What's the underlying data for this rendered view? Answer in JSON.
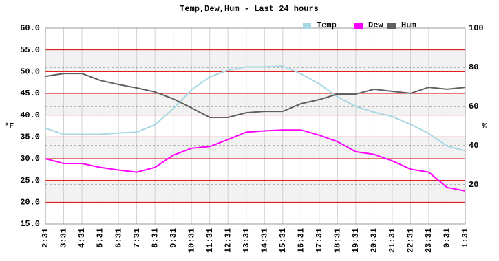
{
  "chart_data": {
    "type": "line",
    "title": "Temp,Dew,Hum - Last 24 hours",
    "ylabel": "°F",
    "y2label": "%",
    "categories": [
      "2:31",
      "3:31",
      "4:31",
      "5:31",
      "6:31",
      "7:31",
      "8:31",
      "9:31",
      "10:31",
      "11:31",
      "12:31",
      "13:31",
      "14:31",
      "15:31",
      "16:31",
      "17:31",
      "18:31",
      "19:31",
      "20:31",
      "21:31",
      "22:31",
      "23:31",
      "0:31",
      "1:31"
    ],
    "series": [
      {
        "name": "Temp",
        "color": "#a8d8e4",
        "values": [
          37.0,
          35.6,
          35.6,
          35.6,
          35.9,
          36.1,
          37.8,
          41.5,
          45.8,
          48.8,
          50.3,
          51.1,
          51.1,
          51.3,
          49.5,
          47.2,
          44.2,
          42.0,
          40.7,
          39.7,
          37.9,
          35.8,
          32.9,
          31.8
        ]
      },
      {
        "name": "Dew",
        "color": "#ff00ff",
        "values": [
          30.0,
          28.9,
          28.9,
          28.0,
          27.4,
          26.9,
          28.0,
          30.8,
          32.4,
          32.8,
          34.4,
          36.1,
          36.4,
          36.6,
          36.6,
          35.4,
          33.9,
          31.6,
          31.0,
          29.5,
          27.6,
          26.9,
          23.4,
          22.6
        ]
      },
      {
        "name": "Hum",
        "color": "#606060",
        "axis": "y2",
        "values": [
          75.4,
          76.8,
          76.8,
          73.3,
          71.2,
          69.5,
          67.4,
          63.9,
          59.3,
          54.4,
          54.4,
          56.8,
          57.5,
          57.5,
          61.4,
          63.5,
          66.3,
          66.3,
          68.8,
          67.7,
          66.7,
          69.8,
          68.8,
          69.8
        ]
      }
    ],
    "ylim": [
      15,
      60
    ],
    "yticks": [
      {
        "value": 15,
        "label": "15.0"
      },
      {
        "value": 20,
        "label": "20.0"
      },
      {
        "value": 25,
        "label": "25.0"
      },
      {
        "value": 30,
        "label": "30.0"
      },
      {
        "value": 35,
        "label": "35.0"
      },
      {
        "value": 40,
        "label": "40.0"
      },
      {
        "value": 45,
        "label": "45.0"
      },
      {
        "value": 50,
        "label": "50.0"
      },
      {
        "value": 55,
        "label": "55.0"
      },
      {
        "value": 60,
        "label": "60.0"
      }
    ],
    "y2lim": [
      0,
      100
    ],
    "y2ticks": [
      20,
      40,
      60,
      80,
      100
    ],
    "grid": true,
    "legend": "top-right"
  }
}
